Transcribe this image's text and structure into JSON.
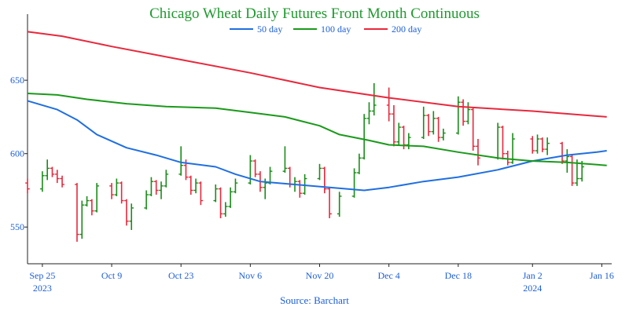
{
  "chart_data": {
    "type": "line",
    "subtype": "ohlc-bars-with-moving-averages",
    "title": "Chicago Wheat Daily Futures Front Month Continuous",
    "source": "Source: Barchart",
    "ylim": [
      525,
      695
    ],
    "yticks": [
      550,
      600,
      650
    ],
    "x_range": [
      "2023-09-22",
      "2024-01-18"
    ],
    "xticks": [
      {
        "date": "2023-09-25",
        "label": "Sep 25",
        "sublabel": "2023"
      },
      {
        "date": "2023-10-09",
        "label": "Oct 9",
        "sublabel": ""
      },
      {
        "date": "2023-10-23",
        "label": "Oct 23",
        "sublabel": ""
      },
      {
        "date": "2023-11-06",
        "label": "Nov 6",
        "sublabel": ""
      },
      {
        "date": "2023-11-20",
        "label": "Nov 20",
        "sublabel": ""
      },
      {
        "date": "2023-12-04",
        "label": "Dec 4",
        "sublabel": ""
      },
      {
        "date": "2023-12-18",
        "label": "Dec 18",
        "sublabel": ""
      },
      {
        "date": "2024-01-02",
        "label": "Jan 2",
        "sublabel": "2024"
      },
      {
        "date": "2024-01-16",
        "label": "Jan 16",
        "sublabel": ""
      }
    ],
    "legend_position": "top-center",
    "grid": false,
    "colors": {
      "up": "#1a8c1a",
      "down": "#e8283c"
    },
    "series": [
      {
        "name": "50 day",
        "color": "#1f6fe0",
        "points": [
          [
            "2023-09-22",
            636
          ],
          [
            "2023-09-28",
            630
          ],
          [
            "2023-10-02",
            623
          ],
          [
            "2023-10-06",
            613
          ],
          [
            "2023-10-12",
            604
          ],
          [
            "2023-10-18",
            599
          ],
          [
            "2023-10-23",
            594
          ],
          [
            "2023-10-30",
            591
          ],
          [
            "2023-11-03",
            586
          ],
          [
            "2023-11-08",
            581
          ],
          [
            "2023-11-15",
            579
          ],
          [
            "2023-11-22",
            577
          ],
          [
            "2023-11-29",
            575
          ],
          [
            "2023-12-04",
            577
          ],
          [
            "2023-12-11",
            581
          ],
          [
            "2023-12-18",
            584
          ],
          [
            "2023-12-26",
            589
          ],
          [
            "2024-01-02",
            595
          ],
          [
            "2024-01-09",
            599
          ],
          [
            "2024-01-15",
            601
          ],
          [
            "2024-01-17",
            602
          ]
        ]
      },
      {
        "name": "100 day",
        "color": "#1a9a1a",
        "points": [
          [
            "2023-09-22",
            641
          ],
          [
            "2023-09-28",
            640
          ],
          [
            "2023-10-04",
            637
          ],
          [
            "2023-10-12",
            634
          ],
          [
            "2023-10-20",
            632
          ],
          [
            "2023-10-30",
            631
          ],
          [
            "2023-11-06",
            628
          ],
          [
            "2023-11-13",
            625
          ],
          [
            "2023-11-20",
            619
          ],
          [
            "2023-11-24",
            613
          ],
          [
            "2023-11-30",
            609
          ],
          [
            "2023-12-04",
            606
          ],
          [
            "2023-12-11",
            605
          ],
          [
            "2023-12-18",
            601
          ],
          [
            "2023-12-26",
            597
          ],
          [
            "2024-01-02",
            595
          ],
          [
            "2024-01-09",
            594
          ],
          [
            "2024-01-17",
            592
          ]
        ]
      },
      {
        "name": "200 day",
        "color": "#e8283c",
        "points": [
          [
            "2023-09-22",
            683
          ],
          [
            "2023-09-29",
            680
          ],
          [
            "2023-10-09",
            673
          ],
          [
            "2023-10-23",
            664
          ],
          [
            "2023-11-06",
            655
          ],
          [
            "2023-11-20",
            645
          ],
          [
            "2023-12-04",
            638
          ],
          [
            "2023-12-18",
            632
          ],
          [
            "2024-01-02",
            629
          ],
          [
            "2024-01-17",
            625
          ]
        ]
      }
    ],
    "ohlc": [
      [
        "2023-09-22",
        580,
        583,
        573,
        576
      ],
      [
        "2023-09-25",
        576,
        588,
        574,
        585
      ],
      [
        "2023-09-26",
        585,
        596,
        582,
        590
      ],
      [
        "2023-09-27",
        590,
        591,
        584,
        586
      ],
      [
        "2023-09-28",
        586,
        589,
        580,
        583
      ],
      [
        "2023-09-29",
        583,
        585,
        577,
        579
      ],
      [
        "2023-10-02",
        579,
        580,
        540,
        545
      ],
      [
        "2023-10-03",
        545,
        568,
        542,
        565
      ],
      [
        "2023-10-04",
        565,
        571,
        564,
        568
      ],
      [
        "2023-10-05",
        568,
        569,
        558,
        561
      ],
      [
        "2023-10-06",
        561,
        580,
        560,
        578
      ],
      [
        "2023-10-09",
        578,
        580,
        569,
        572
      ],
      [
        "2023-10-10",
        572,
        583,
        571,
        580
      ],
      [
        "2023-10-11",
        580,
        581,
        566,
        568
      ],
      [
        "2023-10-12",
        568,
        569,
        551,
        554
      ],
      [
        "2023-10-13",
        554,
        566,
        548,
        563
      ],
      [
        "2023-10-16",
        563,
        575,
        562,
        572
      ],
      [
        "2023-10-17",
        572,
        584,
        571,
        581
      ],
      [
        "2023-10-18",
        581,
        582,
        572,
        575
      ],
      [
        "2023-10-19",
        575,
        581,
        569,
        578
      ],
      [
        "2023-10-20",
        578,
        589,
        577,
        586
      ],
      [
        "2023-10-23",
        586,
        605,
        585,
        592
      ],
      [
        "2023-10-24",
        592,
        596,
        582,
        584
      ],
      [
        "2023-10-25",
        584,
        585,
        572,
        575
      ],
      [
        "2023-10-26",
        575,
        583,
        573,
        580
      ],
      [
        "2023-10-27",
        580,
        581,
        565,
        568
      ],
      [
        "2023-10-30",
        568,
        579,
        567,
        576
      ],
      [
        "2023-10-31",
        576,
        577,
        556,
        559
      ],
      [
        "2023-11-01",
        559,
        567,
        557,
        564
      ],
      [
        "2023-11-02",
        564,
        577,
        563,
        574
      ],
      [
        "2023-11-03",
        574,
        583,
        573,
        580
      ],
      [
        "2023-11-06",
        580,
        599,
        579,
        595
      ],
      [
        "2023-11-07",
        595,
        596,
        584,
        586
      ],
      [
        "2023-11-08",
        586,
        588,
        574,
        577
      ],
      [
        "2023-11-09",
        577,
        583,
        569,
        580
      ],
      [
        "2023-11-10",
        580,
        591,
        579,
        588
      ],
      [
        "2023-11-13",
        588,
        605,
        587,
        590
      ],
      [
        "2023-11-14",
        590,
        591,
        577,
        579
      ],
      [
        "2023-11-15",
        579,
        584,
        574,
        581
      ],
      [
        "2023-11-16",
        581,
        582,
        570,
        573
      ],
      [
        "2023-11-17",
        573,
        586,
        572,
        583
      ],
      [
        "2023-11-20",
        583,
        593,
        582,
        590
      ],
      [
        "2023-11-21",
        590,
        591,
        573,
        576
      ],
      [
        "2023-11-22",
        576,
        577,
        556,
        559
      ],
      [
        "2023-11-24",
        559,
        574,
        557,
        571
      ],
      [
        "2023-11-27",
        571,
        590,
        570,
        587
      ],
      [
        "2023-11-28",
        587,
        600,
        586,
        597
      ],
      [
        "2023-11-29",
        597,
        627,
        596,
        624
      ],
      [
        "2023-11-30",
        624,
        635,
        620,
        629
      ],
      [
        "2023-12-01",
        629,
        648,
        626,
        633
      ],
      [
        "2023-12-04",
        633,
        645,
        622,
        627
      ],
      [
        "2023-12-05",
        627,
        633,
        605,
        608
      ],
      [
        "2023-12-06",
        608,
        621,
        606,
        618
      ],
      [
        "2023-12-07",
        618,
        619,
        603,
        606
      ],
      [
        "2023-12-08",
        606,
        614,
        603,
        611
      ],
      [
        "2023-12-11",
        611,
        632,
        610,
        626
      ],
      [
        "2023-12-12",
        626,
        627,
        612,
        615
      ],
      [
        "2023-12-13",
        615,
        629,
        613,
        624
      ],
      [
        "2023-12-14",
        624,
        625,
        608,
        611
      ],
      [
        "2023-12-15",
        611,
        617,
        609,
        614
      ],
      [
        "2023-12-18",
        614,
        639,
        613,
        635
      ],
      [
        "2023-12-19",
        635,
        637,
        619,
        622
      ],
      [
        "2023-12-20",
        622,
        635,
        620,
        630
      ],
      [
        "2023-12-21",
        630,
        631,
        602,
        605
      ],
      [
        "2023-12-22",
        605,
        610,
        592,
        597
      ],
      [
        "2023-12-26",
        597,
        621,
        596,
        618
      ],
      [
        "2023-12-27",
        618,
        619,
        596,
        600
      ],
      [
        "2023-12-28",
        600,
        602,
        592,
        594
      ],
      [
        "2023-12-29",
        594,
        614,
        593,
        610
      ],
      [
        "2024-01-02",
        610,
        612,
        600,
        602
      ],
      [
        "2024-01-03",
        602,
        613,
        600,
        610
      ],
      [
        "2024-01-04",
        610,
        611,
        601,
        603
      ],
      [
        "2024-01-05",
        603,
        611,
        599,
        607
      ],
      [
        "2024-01-08",
        607,
        608,
        593,
        595
      ],
      [
        "2024-01-09",
        595,
        603,
        587,
        598
      ],
      [
        "2024-01-10",
        598,
        599,
        578,
        580
      ],
      [
        "2024-01-11",
        580,
        596,
        578,
        583
      ],
      [
        "2024-01-12",
        583,
        595,
        581,
        591
      ]
    ]
  }
}
